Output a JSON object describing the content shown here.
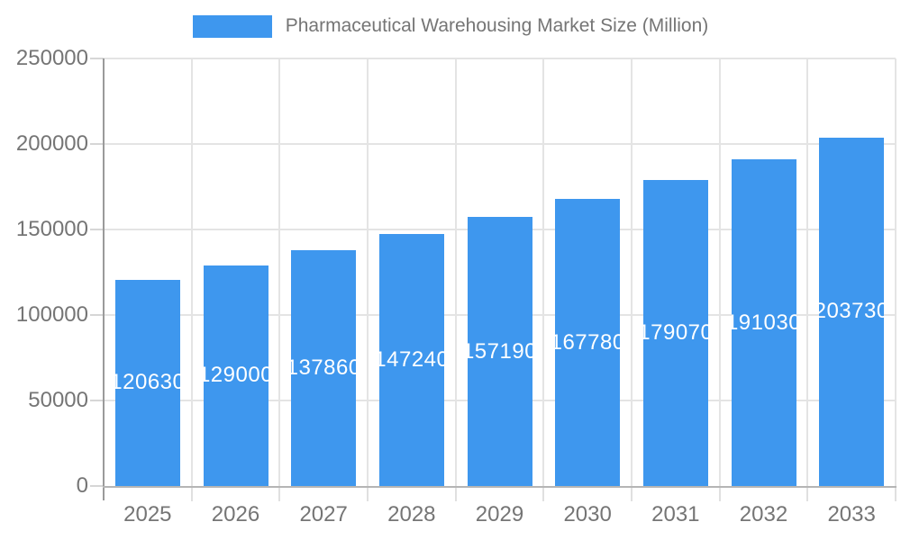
{
  "legend": {
    "label": "Pharmaceutical Warehousing Market Size (Million)",
    "swatch_color": "#3E97EE"
  },
  "chart_data": {
    "type": "bar",
    "title": "Pharmaceutical Warehousing Market Size (Million)",
    "categories": [
      "2025",
      "2026",
      "2027",
      "2028",
      "2029",
      "2030",
      "2031",
      "2032",
      "2033"
    ],
    "values": [
      120630,
      129000,
      137860,
      147240,
      157190,
      167780,
      179070,
      191030,
      203730
    ],
    "bar_labels": [
      "120630",
      "129000",
      "137860",
      "147240",
      "157190",
      "167780",
      "179070",
      "191030",
      "203730"
    ],
    "xlabel": "",
    "ylabel": "",
    "ylim": [
      0,
      250000
    ],
    "y_ticks": [
      0,
      50000,
      100000,
      150000,
      200000,
      250000
    ],
    "y_tick_labels": [
      "0",
      "50000",
      "100000",
      "150000",
      "200000",
      "250000"
    ],
    "grid": true,
    "legend_position": "top-center",
    "value_label_position": "inside-center",
    "colors": {
      "bar": "#3E97EE",
      "axis_text": "#757575",
      "grid_line": "#e4e4e4",
      "x_axis_line": "#b5b5b5",
      "y_axis_line": "#9a9a9a",
      "bar_label_text": "#ffffff",
      "background": "#ffffff"
    }
  }
}
